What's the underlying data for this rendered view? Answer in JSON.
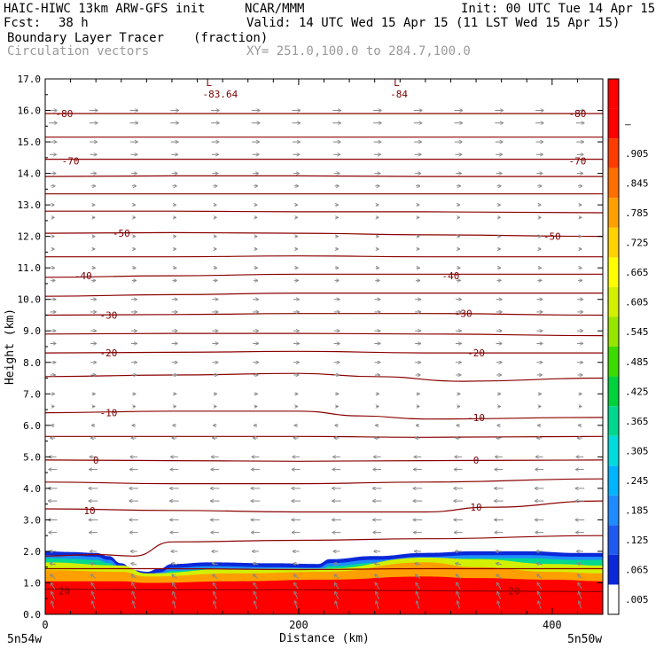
{
  "header": {
    "model": "HAIC-HIWC 13km ARW-GFS init",
    "org": "NCAR/MMM",
    "init": "Init: 00 UTC Tue 14 Apr 15",
    "fcst_label": "Fcst:",
    "fcst_value": "38 h",
    "valid": "Valid: 14 UTC Wed 15 Apr 15 (11 LST Wed 15 Apr 15)",
    "field1": "Boundary Layer Tracer",
    "field1_units": "(fraction)",
    "field2": "Circulation vectors",
    "xy": "XY= 251.0,100.0 to 284.7,100.0"
  },
  "chart_data": {
    "type": "heatmap",
    "xlabel": "Distance (km)",
    "ylabel": "Height (km)",
    "xlim": [
      0,
      440
    ],
    "ylim": [
      0,
      17
    ],
    "x_ticks": [
      0,
      200,
      400
    ],
    "y_ticks": [
      "0.0",
      "1.0",
      "2.0",
      "3.0",
      "4.0",
      "5.0",
      "6.0",
      "7.0",
      "8.0",
      "9.0",
      "10.0",
      "11.0",
      "12.0",
      "13.0",
      "14.0",
      "15.0",
      "16.0",
      "17.0"
    ],
    "x_end_labels": {
      "left": "5n54w",
      "right": "5n50w"
    },
    "colorbar": {
      "labels": [
        ".005",
        ".065",
        ".125",
        ".185",
        ".245",
        ".305",
        ".365",
        ".425",
        ".485",
        ".545",
        ".605",
        ".665",
        ".725",
        ".785",
        ".845",
        ".905",
        "–"
      ],
      "colors": [
        "#ffffff",
        "#0a28d8",
        "#1e5af0",
        "#1e8cff",
        "#00b4ff",
        "#00dcdc",
        "#00d890",
        "#00d23c",
        "#3cdc00",
        "#96e600",
        "#d2f000",
        "#ffff00",
        "#ffd200",
        "#ffa000",
        "#ff6e00",
        "#ff3c00",
        "#ff0000",
        "#ff0000"
      ]
    },
    "tracer_top_km": [
      [
        0,
        2.0
      ],
      [
        20,
        1.98
      ],
      [
        40,
        1.95
      ],
      [
        50,
        1.85
      ],
      [
        60,
        1.62
      ],
      [
        70,
        1.4
      ],
      [
        80,
        1.35
      ],
      [
        90,
        1.45
      ],
      [
        100,
        1.6
      ],
      [
        130,
        1.65
      ],
      [
        180,
        1.62
      ],
      [
        215,
        1.6
      ],
      [
        225,
        1.75
      ],
      [
        260,
        1.85
      ],
      [
        300,
        1.95
      ],
      [
        340,
        2.0
      ],
      [
        380,
        2.0
      ],
      [
        420,
        1.95
      ],
      [
        440,
        1.95
      ]
    ],
    "tracer_layers": [
      {
        "value": 0.9,
        "top": [
          [
            0,
            1.05
          ],
          [
            60,
            1.05
          ],
          [
            80,
            1.0
          ],
          [
            150,
            1.05
          ],
          [
            220,
            1.1
          ],
          [
            300,
            1.2
          ],
          [
            340,
            1.15
          ],
          [
            400,
            1.1
          ],
          [
            440,
            1.05
          ]
        ]
      },
      {
        "value": 0.6,
        "top": [
          [
            0,
            1.4
          ],
          [
            60,
            1.35
          ],
          [
            80,
            1.2
          ],
          [
            150,
            1.3
          ],
          [
            220,
            1.35
          ],
          [
            300,
            1.65
          ],
          [
            340,
            1.5
          ],
          [
            400,
            1.35
          ],
          [
            440,
            1.3
          ]
        ]
      },
      {
        "value": 0.35,
        "top": [
          [
            0,
            1.65
          ],
          [
            60,
            1.55
          ],
          [
            80,
            1.3
          ],
          [
            150,
            1.45
          ],
          [
            220,
            1.45
          ],
          [
            300,
            1.8
          ],
          [
            340,
            1.75
          ],
          [
            400,
            1.6
          ],
          [
            440,
            1.55
          ]
        ]
      }
    ],
    "temperature_contours": [
      {
        "label": "20",
        "label_at": [
          [
            15,
            0.75
          ],
          [
            370,
            0.75
          ]
        ],
        "points": [
          [
            0,
            0.8
          ],
          [
            100,
            0.78
          ],
          [
            200,
            0.78
          ],
          [
            300,
            0.75
          ],
          [
            440,
            0.72
          ]
        ]
      },
      {
        "label": "",
        "label_at": [],
        "points": [
          [
            0,
            1.45
          ],
          [
            100,
            1.45
          ],
          [
            200,
            1.42
          ],
          [
            300,
            1.45
          ],
          [
            440,
            1.45
          ]
        ]
      },
      {
        "label": "",
        "label_at": [],
        "points": [
          [
            0,
            1.85
          ],
          [
            40,
            1.9
          ],
          [
            70,
            1.85
          ],
          [
            100,
            2.3
          ],
          [
            200,
            2.35
          ],
          [
            300,
            2.4
          ],
          [
            440,
            2.5
          ]
        ]
      },
      {
        "label": "10",
        "label_at": [
          [
            35,
            3.3
          ],
          [
            340,
            3.4
          ]
        ],
        "points": [
          [
            0,
            3.35
          ],
          [
            100,
            3.3
          ],
          [
            200,
            3.25
          ],
          [
            300,
            3.25
          ],
          [
            350,
            3.4
          ],
          [
            440,
            3.6
          ]
        ]
      },
      {
        "label": "",
        "label_at": [],
        "points": [
          [
            0,
            4.2
          ],
          [
            100,
            4.15
          ],
          [
            200,
            4.15
          ],
          [
            300,
            4.2
          ],
          [
            440,
            4.3
          ]
        ]
      },
      {
        "label": "0",
        "label_at": [
          [
            40,
            4.9
          ],
          [
            340,
            4.9
          ]
        ],
        "points": [
          [
            0,
            4.9
          ],
          [
            100,
            4.88
          ],
          [
            200,
            4.86
          ],
          [
            300,
            4.88
          ],
          [
            440,
            4.9
          ]
        ]
      },
      {
        "label": "",
        "label_at": [],
        "points": [
          [
            0,
            5.65
          ],
          [
            100,
            5.65
          ],
          [
            200,
            5.65
          ],
          [
            300,
            5.62
          ],
          [
            440,
            5.65
          ]
        ]
      },
      {
        "label": "-10",
        "label_at": [
          [
            50,
            6.4
          ],
          [
            340,
            6.25
          ]
        ],
        "points": [
          [
            0,
            6.4
          ],
          [
            100,
            6.45
          ],
          [
            200,
            6.45
          ],
          [
            250,
            6.3
          ],
          [
            300,
            6.2
          ],
          [
            440,
            6.25
          ]
        ]
      },
      {
        "label": "",
        "label_at": [],
        "points": [
          [
            0,
            7.55
          ],
          [
            100,
            7.6
          ],
          [
            200,
            7.65
          ],
          [
            260,
            7.55
          ],
          [
            330,
            7.4
          ],
          [
            440,
            7.5
          ]
        ]
      },
      {
        "label": "-20",
        "label_at": [
          [
            50,
            8.3
          ],
          [
            340,
            8.3
          ]
        ],
        "points": [
          [
            0,
            8.3
          ],
          [
            100,
            8.32
          ],
          [
            200,
            8.35
          ],
          [
            300,
            8.3
          ],
          [
            440,
            8.3
          ]
        ]
      },
      {
        "label": "",
        "label_at": [],
        "points": [
          [
            0,
            8.9
          ],
          [
            100,
            8.92
          ],
          [
            200,
            8.92
          ],
          [
            300,
            8.9
          ],
          [
            440,
            8.85
          ]
        ]
      },
      {
        "label": "-30",
        "label_at": [
          [
            50,
            9.5
          ],
          [
            330,
            9.55
          ]
        ],
        "points": [
          [
            0,
            9.5
          ],
          [
            100,
            9.52
          ],
          [
            200,
            9.55
          ],
          [
            300,
            9.55
          ],
          [
            440,
            9.5
          ]
        ]
      },
      {
        "label": "",
        "label_at": [],
        "points": [
          [
            0,
            10.1
          ],
          [
            100,
            10.15
          ],
          [
            200,
            10.2
          ],
          [
            300,
            10.2
          ],
          [
            440,
            10.2
          ]
        ]
      },
      {
        "label": "-40",
        "label_at": [
          [
            30,
            10.75
          ],
          [
            320,
            10.75
          ]
        ],
        "points": [
          [
            0,
            10.7
          ],
          [
            100,
            10.75
          ],
          [
            200,
            10.8
          ],
          [
            300,
            10.8
          ],
          [
            440,
            10.8
          ]
        ]
      },
      {
        "label": "",
        "label_at": [],
        "points": [
          [
            0,
            11.35
          ],
          [
            100,
            11.35
          ],
          [
            200,
            11.38
          ],
          [
            300,
            11.35
          ],
          [
            440,
            11.35
          ]
        ]
      },
      {
        "label": "-50",
        "label_at": [
          [
            60,
            12.1
          ],
          [
            400,
            12.0
          ]
        ],
        "points": [
          [
            0,
            12.1
          ],
          [
            100,
            12.12
          ],
          [
            200,
            12.1
          ],
          [
            300,
            12.05
          ],
          [
            440,
            12.0
          ]
        ]
      },
      {
        "label": "",
        "label_at": [],
        "points": [
          [
            0,
            12.8
          ],
          [
            100,
            12.8
          ],
          [
            200,
            12.78
          ],
          [
            300,
            12.78
          ],
          [
            440,
            12.75
          ]
        ]
      },
      {
        "label": "",
        "label_at": [],
        "points": [
          [
            0,
            13.35
          ],
          [
            100,
            13.35
          ],
          [
            200,
            13.35
          ],
          [
            300,
            13.35
          ],
          [
            440,
            13.35
          ]
        ]
      },
      {
        "label": "",
        "label_at": [],
        "points": [
          [
            0,
            13.9
          ],
          [
            100,
            13.92
          ],
          [
            200,
            13.92
          ],
          [
            300,
            13.9
          ],
          [
            440,
            13.9
          ]
        ]
      },
      {
        "label": "-70",
        "label_at": [
          [
            20,
            14.4
          ],
          [
            420,
            14.4
          ]
        ],
        "points": [
          [
            0,
            14.45
          ],
          [
            100,
            14.45
          ],
          [
            200,
            14.45
          ],
          [
            300,
            14.45
          ],
          [
            440,
            14.45
          ]
        ]
      },
      {
        "label": "",
        "label_at": [],
        "points": [
          [
            0,
            15.15
          ],
          [
            100,
            15.15
          ],
          [
            200,
            15.15
          ],
          [
            300,
            15.15
          ],
          [
            440,
            15.15
          ]
        ]
      },
      {
        "label": "-80",
        "label_at": [
          [
            15,
            15.9
          ],
          [
            420,
            15.9
          ]
        ],
        "points": [
          [
            0,
            15.9
          ],
          [
            100,
            15.9
          ],
          [
            200,
            15.9
          ],
          [
            300,
            15.9
          ],
          [
            440,
            15.9
          ]
        ]
      }
    ],
    "extrema": [
      {
        "symbol": "L",
        "value": "-83.64",
        "x": 127,
        "y": 16.6
      },
      {
        "symbol": "L",
        "value": "-84",
        "x": 275,
        "y": 16.6
      }
    ],
    "vectors": {
      "color": "#888888",
      "x_spacing_km": 32,
      "levels": [
        {
          "z": 16.0,
          "u": 1.0,
          "w": 0.0
        },
        {
          "z": 15.6,
          "u": 1.0,
          "w": 0.0
        },
        {
          "z": 15.0,
          "u": 0.9,
          "w": 0.0
        },
        {
          "z": 14.6,
          "u": 0.8,
          "w": 0.0
        },
        {
          "z": 14.0,
          "u": 0.7,
          "w": 0.0
        },
        {
          "z": 13.6,
          "u": 0.5,
          "w": 0.0
        },
        {
          "z": 13.0,
          "u": 0.3,
          "w": 0.0
        },
        {
          "z": 12.6,
          "u": 0.3,
          "w": 0.0
        },
        {
          "z": 12.0,
          "u": 0.3,
          "w": 0.0
        },
        {
          "z": 11.6,
          "u": 0.3,
          "w": 0.0
        },
        {
          "z": 11.0,
          "u": 0.4,
          "w": 0.0
        },
        {
          "z": 10.6,
          "u": 0.5,
          "w": 0.0
        },
        {
          "z": 10.0,
          "u": 0.7,
          "w": 0.0
        },
        {
          "z": 9.6,
          "u": 0.7,
          "w": 0.0
        },
        {
          "z": 9.0,
          "u": 0.7,
          "w": 0.0
        },
        {
          "z": 8.6,
          "u": 0.7,
          "w": 0.0
        },
        {
          "z": 8.0,
          "u": 0.7,
          "w": 0.0
        },
        {
          "z": 7.6,
          "u": 0.6,
          "w": 0.0
        },
        {
          "z": 7.0,
          "u": 0.4,
          "w": 0.0
        },
        {
          "z": 6.6,
          "u": 0.3,
          "w": 0.0
        },
        {
          "z": 6.0,
          "u": -0.4,
          "w": 0.0
        },
        {
          "z": 5.6,
          "u": -0.6,
          "w": 0.0
        },
        {
          "z": 5.0,
          "u": -0.9,
          "w": 0.0
        },
        {
          "z": 4.6,
          "u": -1.0,
          "w": 0.0
        },
        {
          "z": 4.0,
          "u": -1.1,
          "w": 0.0
        },
        {
          "z": 3.6,
          "u": -1.1,
          "w": 0.0
        },
        {
          "z": 3.0,
          "u": -1.1,
          "w": 0.0
        },
        {
          "z": 2.6,
          "u": -1.0,
          "w": 0.0
        },
        {
          "z": 2.0,
          "u": -0.8,
          "w": 0.0
        },
        {
          "z": 1.6,
          "u": -0.7,
          "w": 0.1
        },
        {
          "z": 1.2,
          "u": -0.6,
          "w": 0.3
        },
        {
          "z": 0.9,
          "u": -0.5,
          "w": 0.5
        },
        {
          "z": 0.6,
          "u": -0.4,
          "w": 0.6
        },
        {
          "z": 0.3,
          "u": -0.3,
          "w": 0.6
        }
      ]
    },
    "grid": false
  }
}
